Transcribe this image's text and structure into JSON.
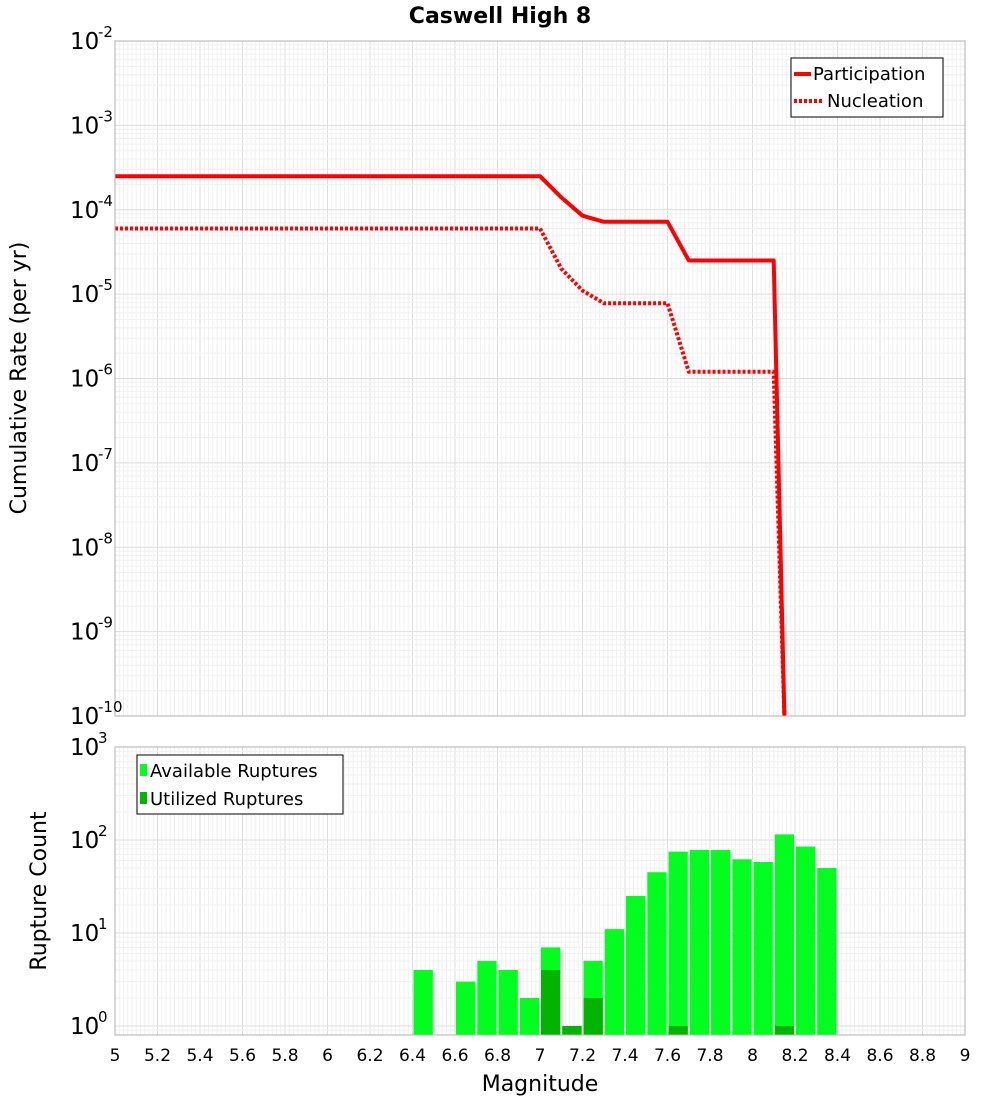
{
  "chart_data": [
    {
      "type": "line",
      "title": "Caswell High 8",
      "ylabel": "Cumulative Rate (per yr)",
      "y_scale": "log",
      "xlim": [
        5,
        9
      ],
      "ylim": [
        1e-10,
        0.01
      ],
      "y_tick_base": "10",
      "y_ticks": [
        {
          "value": 0.01,
          "exp": "-2"
        },
        {
          "value": 0.001,
          "exp": "-3"
        },
        {
          "value": 0.0001,
          "exp": "-4"
        },
        {
          "value": 1e-05,
          "exp": "-5"
        },
        {
          "value": 1e-06,
          "exp": "-6"
        },
        {
          "value": 1e-07,
          "exp": "-7"
        },
        {
          "value": 1e-08,
          "exp": "-8"
        },
        {
          "value": 1e-09,
          "exp": "-9"
        },
        {
          "value": 1e-10,
          "exp": "-10"
        }
      ],
      "legend": {
        "position": "top-right"
      },
      "grid": true,
      "series": [
        {
          "name": "Participation",
          "style": "solid",
          "color": "#ff0000",
          "x": [
            5.0,
            7.0,
            7.1,
            7.2,
            7.3,
            7.6,
            7.7,
            8.1,
            8.15
          ],
          "y": [
            0.00025,
            0.00025,
            0.00014,
            8.5e-05,
            7.2e-05,
            7.2e-05,
            2.5e-05,
            2.5e-05,
            1e-10
          ]
        },
        {
          "name": "Nucleation",
          "style": "dotted",
          "color": "#ff0000",
          "x": [
            5.0,
            7.0,
            7.1,
            7.2,
            7.3,
            7.6,
            7.7,
            8.1,
            8.15
          ],
          "y": [
            6e-05,
            6e-05,
            2e-05,
            1.1e-05,
            7.8e-06,
            7.8e-06,
            1.2e-06,
            1.2e-06,
            1e-10
          ]
        }
      ]
    },
    {
      "type": "bar",
      "xlabel": "Magnitude",
      "ylabel": "Rupture Count",
      "y_scale": "log",
      "xlim": [
        5,
        9
      ],
      "ylim": [
        0.8,
        1000
      ],
      "x_ticks": [
        "5",
        "5.2",
        "5.4",
        "5.6",
        "5.8",
        "6",
        "6.2",
        "6.4",
        "6.6",
        "6.8",
        "7",
        "7.2",
        "7.4",
        "7.6",
        "7.8",
        "8",
        "8.2",
        "8.4",
        "8.6",
        "8.8",
        "9"
      ],
      "y_tick_base": "10",
      "y_ticks": [
        {
          "value": 1,
          "exp": "0"
        },
        {
          "value": 10,
          "exp": "1"
        },
        {
          "value": 100,
          "exp": "2"
        },
        {
          "value": 1000,
          "exp": "3"
        }
      ],
      "legend": {
        "position": "top-left"
      },
      "grid": true,
      "bin_width": 0.1,
      "x": [
        6.45,
        6.55,
        6.65,
        6.75,
        6.85,
        6.95,
        7.05,
        7.15,
        7.25,
        7.35,
        7.45,
        7.55,
        7.65,
        7.75,
        7.85,
        7.95,
        8.05,
        8.15,
        8.25,
        8.35
      ],
      "series": [
        {
          "name": "Available Ruptures",
          "color": "#00ff1e",
          "values": [
            4,
            0,
            3,
            5,
            4,
            2,
            7,
            1,
            5,
            11,
            25,
            45,
            75,
            78,
            78,
            62,
            58,
            115,
            85,
            50
          ]
        },
        {
          "name": "Utilized Ruptures",
          "color": "#00b400",
          "values": [
            0,
            0,
            0,
            0,
            0,
            0,
            4,
            1,
            2,
            0,
            0,
            0,
            1,
            0,
            0,
            0,
            0,
            1,
            0,
            0
          ]
        }
      ]
    }
  ]
}
